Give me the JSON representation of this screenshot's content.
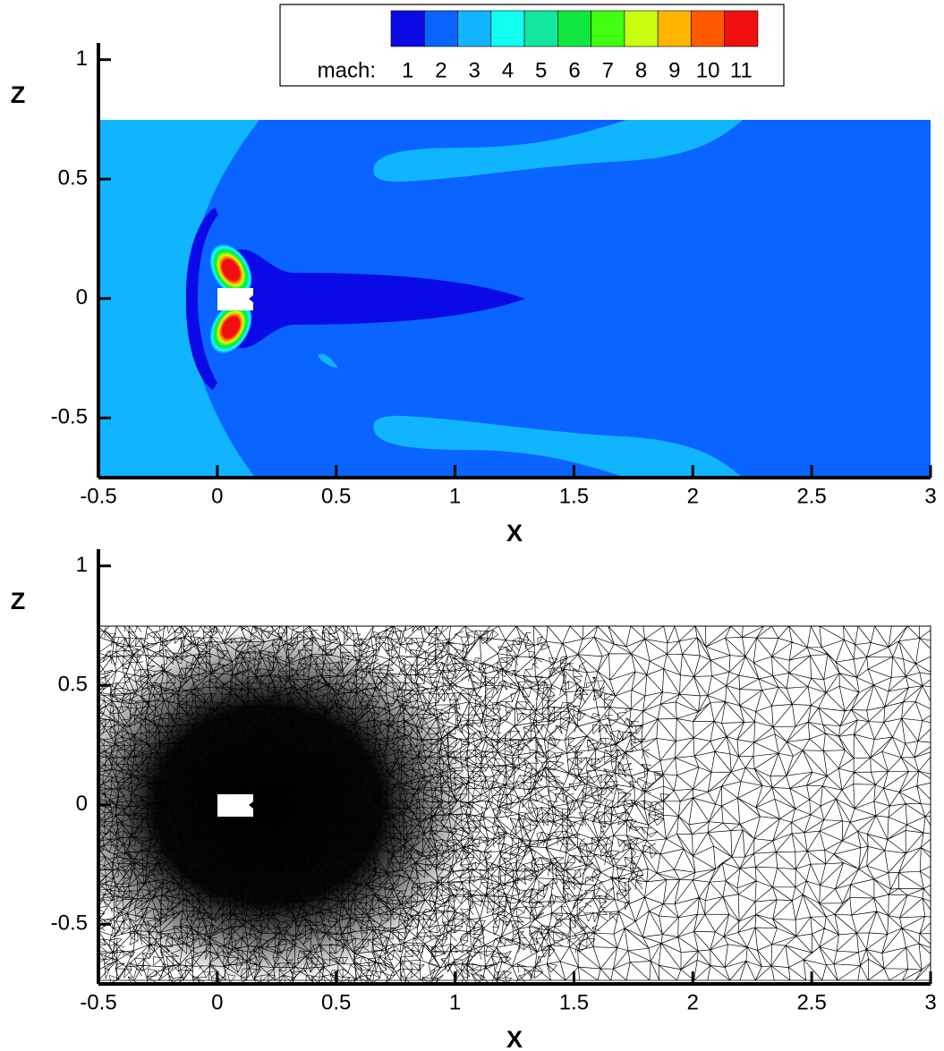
{
  "chart_data": [
    {
      "type": "contour",
      "x_label": "X",
      "y_label": "Z",
      "xlim": [
        -0.5,
        3
      ],
      "ylim": [
        -0.75,
        1.07
      ],
      "xticks": [
        -0.5,
        0,
        0.5,
        1,
        1.5,
        2,
        2.5,
        3
      ],
      "yticks": [
        -0.5,
        0,
        0.5,
        1
      ],
      "colorbar": {
        "label": "mach:",
        "levels": [
          1,
          2,
          3,
          4,
          5,
          6,
          7,
          8,
          9,
          10,
          11
        ],
        "colors": [
          "#0a0ae6",
          "#0a64ff",
          "#10b4ff",
          "#10fff0",
          "#10e6a0",
          "#10e640",
          "#40ff10",
          "#c8ff10",
          "#ffb400",
          "#ff5a00",
          "#f01010"
        ]
      }
    },
    {
      "type": "mesh",
      "x_label": "X",
      "y_label": "Z",
      "xlim": [
        -0.5,
        3
      ],
      "ylim": [
        -0.75,
        1.07
      ],
      "xticks": [
        -0.5,
        0,
        0.5,
        1,
        1.5,
        2,
        2.5,
        3
      ],
      "yticks": [
        -0.5,
        0,
        0.5,
        1
      ]
    }
  ]
}
